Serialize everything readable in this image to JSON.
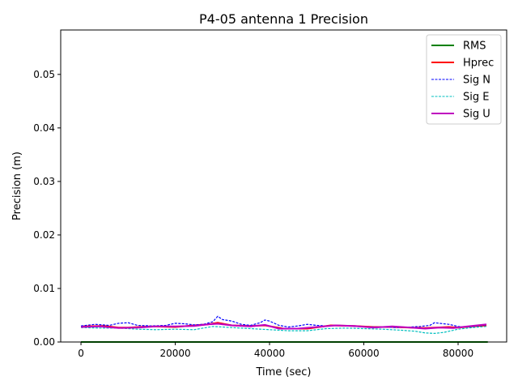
{
  "chart_data": {
    "type": "line",
    "title": "P4-05 antenna 1 Precision",
    "xlabel": "Time (sec)",
    "ylabel": "Precision (m)",
    "xlim": [
      -4300,
      90300
    ],
    "ylim": [
      0,
      0.0583
    ],
    "x_ticks": [
      0,
      20000,
      40000,
      60000,
      80000
    ],
    "x_tick_labels": [
      "0",
      "20000",
      "40000",
      "60000",
      "80000"
    ],
    "y_ticks": [
      0,
      0.01,
      0.02,
      0.03,
      0.04,
      0.05
    ],
    "y_tick_labels": [
      "0.00",
      "0.01",
      "0.02",
      "0.03",
      "0.04",
      "0.05"
    ],
    "grid": false,
    "legend_position": "top-right",
    "series": [
      {
        "name": "RMS",
        "color": "#008000",
        "style": "solid",
        "x": [
          0,
          86300
        ],
        "y": [
          0,
          0
        ]
      },
      {
        "name": "Hprec",
        "color": "#ff0000",
        "style": "solid",
        "x": [
          0,
          5000,
          8000,
          10000,
          15000,
          20000,
          24000,
          27000,
          29000,
          32000,
          36000,
          39000,
          43000,
          48000,
          53000,
          58000,
          62000,
          66000,
          70000,
          73000,
          75000,
          78000,
          80000,
          83000,
          86000
        ],
        "y": [
          0.0029,
          0.003,
          0.0027,
          0.0027,
          0.0029,
          0.0028,
          0.0031,
          0.0033,
          0.0036,
          0.0031,
          0.003,
          0.0031,
          0.0025,
          0.0025,
          0.0031,
          0.003,
          0.0028,
          0.0028,
          0.0027,
          0.0026,
          0.0027,
          0.0028,
          0.0027,
          0.0029,
          0.0031
        ]
      },
      {
        "name": "Sig N",
        "color": "#0000ff",
        "style": "dashed",
        "x": [
          0,
          3000,
          6000,
          8000,
          10000,
          12000,
          15000,
          18000,
          20000,
          22000,
          24000,
          26000,
          28000,
          29000,
          30000,
          32000,
          34000,
          36000,
          38000,
          39000,
          40000,
          42000,
          44000,
          46000,
          48000,
          50000,
          52000,
          55000,
          58000,
          61000,
          64000,
          67000,
          70000,
          72000,
          74000,
          75000,
          76000,
          78000,
          80000,
          82000,
          84000,
          86000
        ],
        "y": [
          0.003,
          0.0033,
          0.0031,
          0.0035,
          0.0036,
          0.0031,
          0.003,
          0.0031,
          0.0035,
          0.0034,
          0.0032,
          0.0033,
          0.0038,
          0.0048,
          0.0042,
          0.0039,
          0.0033,
          0.0031,
          0.0036,
          0.0041,
          0.0039,
          0.0031,
          0.0028,
          0.003,
          0.0033,
          0.0031,
          0.003,
          0.0031,
          0.0029,
          0.0028,
          0.0028,
          0.0027,
          0.0028,
          0.0029,
          0.0031,
          0.0036,
          0.0035,
          0.0033,
          0.0029,
          0.0028,
          0.003,
          0.0032
        ]
      },
      {
        "name": "Sig E",
        "color": "#00bfbf",
        "style": "dashed",
        "x": [
          0,
          4000,
          8000,
          12000,
          16000,
          20000,
          24000,
          28000,
          32000,
          36000,
          40000,
          44000,
          48000,
          52000,
          56000,
          60000,
          64000,
          68000,
          71000,
          73000,
          75000,
          77000,
          80000,
          83000,
          86000
        ],
        "y": [
          0.0027,
          0.0026,
          0.0026,
          0.0024,
          0.0023,
          0.0024,
          0.0023,
          0.0029,
          0.0027,
          0.0025,
          0.0023,
          0.0021,
          0.0021,
          0.0025,
          0.0026,
          0.0025,
          0.0024,
          0.0022,
          0.002,
          0.0017,
          0.0016,
          0.0018,
          0.0024,
          0.0027,
          0.0029
        ]
      },
      {
        "name": "Sig U",
        "color": "#bf00bf",
        "style": "solid",
        "x": [
          0,
          4000,
          8000,
          12000,
          16000,
          20000,
          24000,
          27000,
          29000,
          32000,
          36000,
          39000,
          42000,
          46000,
          50000,
          54000,
          58000,
          62000,
          66000,
          70000,
          73000,
          76000,
          79000,
          82000,
          86000
        ],
        "y": [
          0.0028,
          0.0029,
          0.0026,
          0.0027,
          0.0029,
          0.0029,
          0.003,
          0.0033,
          0.0034,
          0.0031,
          0.0029,
          0.0032,
          0.0025,
          0.0025,
          0.0028,
          0.0031,
          0.003,
          0.0027,
          0.0029,
          0.0027,
          0.0025,
          0.0027,
          0.0026,
          0.0029,
          0.0033
        ]
      }
    ]
  }
}
